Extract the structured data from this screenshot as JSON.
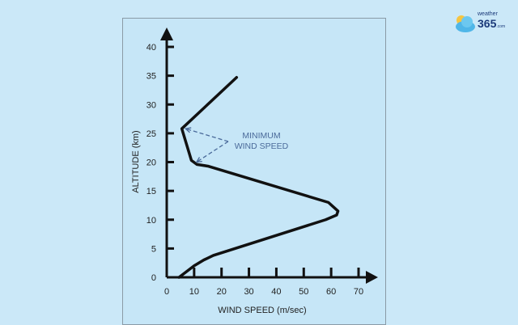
{
  "brand": {
    "name": "weather",
    "number": "365",
    "suffix": ".com"
  },
  "chart_data": {
    "type": "line",
    "xlabel": "WIND SPEED (m/sec)",
    "ylabel": "ALTITUDE (km)",
    "xlim": [
      0,
      70
    ],
    "ylim": [
      0,
      40
    ],
    "xticks": [
      0,
      10,
      20,
      30,
      40,
      50,
      60,
      70
    ],
    "yticks": [
      0,
      5,
      10,
      15,
      20,
      25,
      30,
      35,
      40
    ],
    "grid": false,
    "series": [
      {
        "points": [
          [
            4.5,
            0
          ],
          [
            10,
            2
          ],
          [
            13.5,
            3
          ],
          [
            17,
            3.8
          ],
          [
            58,
            10
          ],
          [
            62,
            10.8
          ],
          [
            62.5,
            11.5
          ],
          [
            59,
            13
          ],
          [
            15,
            19.3
          ],
          [
            11,
            19.6
          ],
          [
            9,
            20.3
          ],
          [
            5.5,
            25.8
          ],
          [
            25.5,
            34.7
          ]
        ],
        "color": "#111111"
      }
    ],
    "annotation": {
      "lines": [
        "MINIMUM",
        "WIND SPEED"
      ],
      "color": "#4a6a9a",
      "targets": [
        [
          6,
          25.8
        ],
        [
          10,
          20
        ]
      ]
    }
  }
}
